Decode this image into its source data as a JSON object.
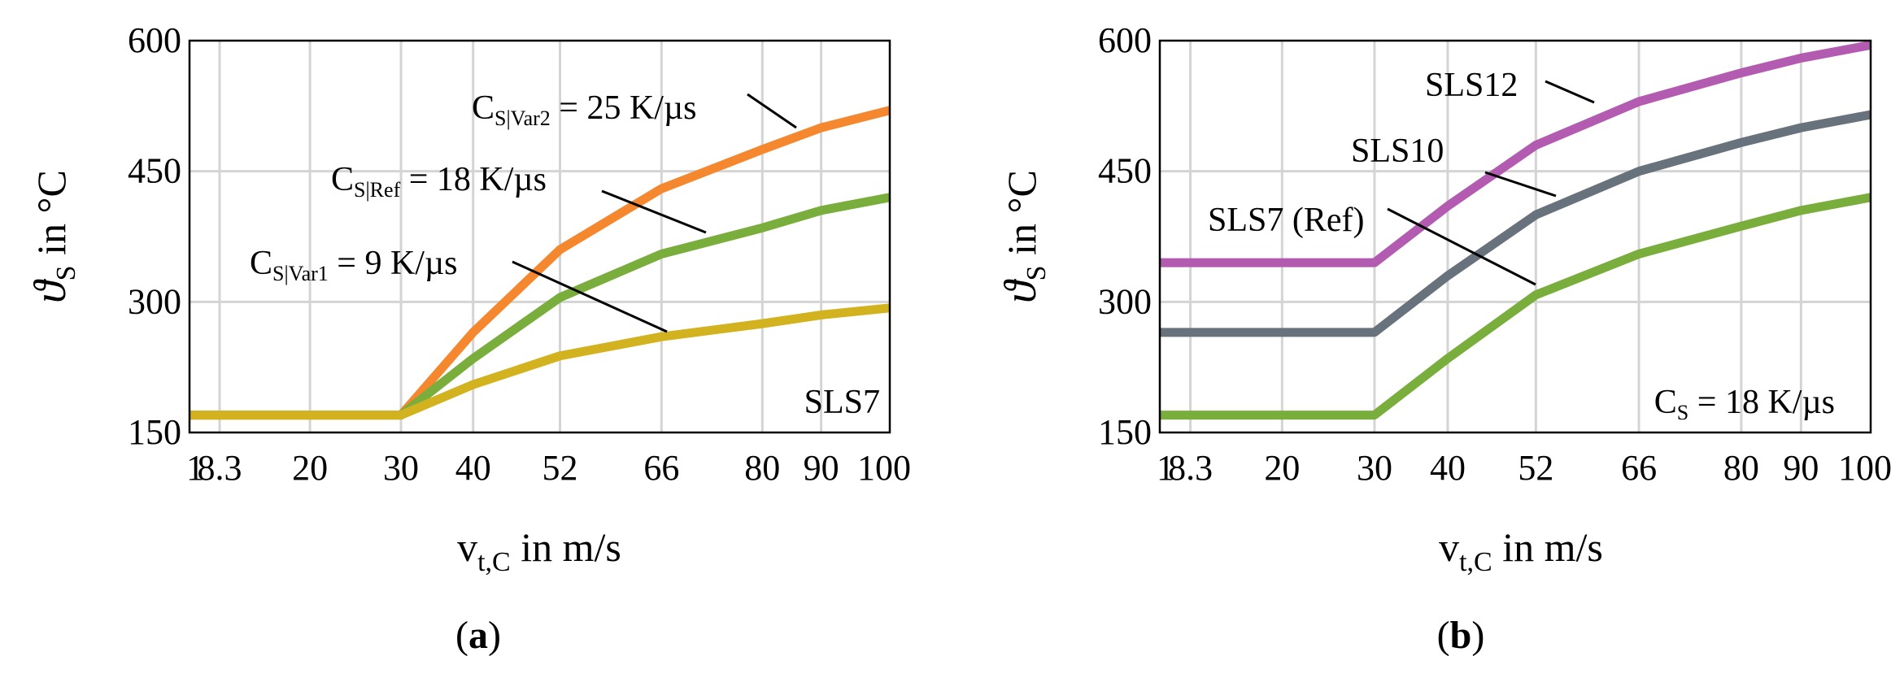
{
  "chart_data": [
    {
      "type": "line",
      "panel_label": "(a)",
      "ylabel": "ϑS in °C",
      "xlabel": "vt,C in m/s",
      "ylim": [
        150,
        600
      ],
      "yticks": [
        150,
        300,
        450,
        600
      ],
      "x_ticks": [
        "1",
        "8.3",
        "20",
        "30",
        "40",
        "52",
        "66",
        "80",
        "90",
        "100"
      ],
      "grid": true,
      "corner_text": "SLS7",
      "series": [
        {
          "name": "CS|Var2 = 25 K/µs",
          "color": "#f5872e",
          "values": [
            170,
            170,
            170,
            170,
            265,
            360,
            430,
            475,
            500,
            520
          ]
        },
        {
          "name": "CS|Ref = 18 K/µs",
          "color": "#79ad3c",
          "values": [
            170,
            170,
            170,
            170,
            235,
            305,
            355,
            385,
            405,
            420
          ]
        },
        {
          "name": "CS|Var1 = 9 K/µs",
          "color": "#d2b21f",
          "values": [
            170,
            170,
            170,
            170,
            205,
            238,
            260,
            275,
            285,
            293
          ]
        }
      ],
      "annotations": [
        {
          "main": "C",
          "sub": "S|Var2",
          "rest": " = 25 K/µs"
        },
        {
          "main": "C",
          "sub": "S|Ref",
          "rest": " = 18 K/µs"
        },
        {
          "main": "C",
          "sub": "S|Var1",
          "rest": " = 9 K/µs"
        }
      ]
    },
    {
      "type": "line",
      "panel_label": "(b)",
      "ylabel": "ϑS in °C",
      "xlabel": "vt,C in m/s",
      "ylim": [
        150,
        600
      ],
      "yticks": [
        150,
        300,
        450,
        600
      ],
      "x_ticks": [
        "1",
        "8.3",
        "20",
        "30",
        "40",
        "52",
        "66",
        "80",
        "90",
        "100"
      ],
      "grid": true,
      "corner_text": {
        "main": "C",
        "sub": "S",
        "rest": " = 18 K/µs"
      },
      "series": [
        {
          "name": "SLS12",
          "color": "#b35bb0",
          "values": [
            345,
            345,
            345,
            345,
            410,
            480,
            530,
            563,
            580,
            595
          ]
        },
        {
          "name": "SLS10",
          "color": "#68727c",
          "values": [
            265,
            265,
            265,
            265,
            330,
            400,
            450,
            483,
            500,
            515
          ]
        },
        {
          "name": "SLS7 (Ref)",
          "color": "#79ad3c",
          "values": [
            170,
            170,
            170,
            170,
            235,
            308,
            355,
            387,
            405,
            420
          ]
        }
      ],
      "annotations": [
        {
          "text": "SLS12"
        },
        {
          "text": "SLS10"
        },
        {
          "text": "SLS7 (Ref)"
        }
      ]
    }
  ]
}
